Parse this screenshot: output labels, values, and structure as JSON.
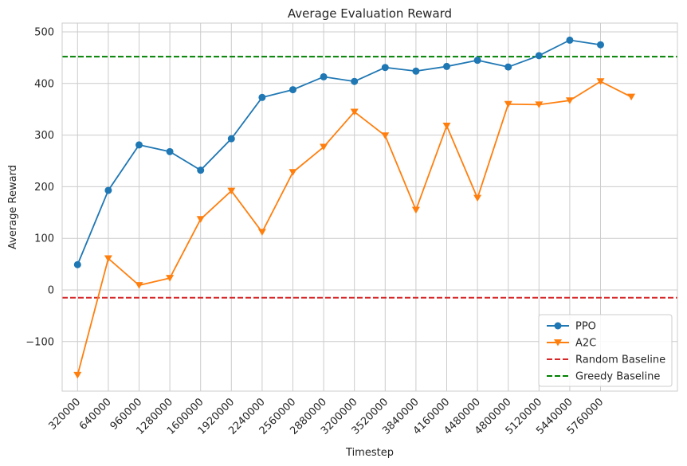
{
  "chart_data": {
    "type": "line",
    "title": "Average Evaluation Reward",
    "xlabel": "Timestep",
    "ylabel": "Average Reward",
    "x_ticks": [
      "320000",
      "640000",
      "960000",
      "1280000",
      "1600000",
      "1920000",
      "2240000",
      "2560000",
      "2880000",
      "3200000",
      "3520000",
      "3840000",
      "4160000",
      "4480000",
      "4800000",
      "5120000",
      "5440000",
      "5760000"
    ],
    "y_ticks": [
      -100,
      0,
      100,
      200,
      300,
      400,
      500
    ],
    "y_tick_labels": [
      "−100",
      "0",
      "100",
      "200",
      "300",
      "400",
      "500"
    ],
    "xlim": [
      160000,
      6560000
    ],
    "ylim": [
      -196,
      517
    ],
    "grid": true,
    "legend_position": "lower-right",
    "series": [
      {
        "name": "PPO",
        "color": "#1f77b4",
        "marker": "circle",
        "x": [
          320000,
          640000,
          960000,
          1280000,
          1600000,
          1920000,
          2240000,
          2560000,
          2880000,
          3200000,
          3520000,
          3840000,
          4160000,
          4480000,
          4800000,
          5120000,
          5440000,
          5760000
        ],
        "values": [
          49,
          193,
          281,
          268,
          232,
          293,
          373,
          388,
          413,
          404,
          431,
          424,
          433,
          445,
          432,
          454,
          484,
          475
        ]
      },
      {
        "name": "A2C",
        "color": "#ff7f0e",
        "marker": "triangle-down",
        "x": [
          320000,
          640000,
          960000,
          1280000,
          1600000,
          1920000,
          2240000,
          2560000,
          2880000,
          3200000,
          3520000,
          3840000,
          4160000,
          4480000,
          4800000,
          5120000,
          5440000,
          5760000,
          6080000
        ],
        "values": [
          -165,
          61,
          9,
          23,
          137,
          192,
          112,
          228,
          277,
          345,
          299,
          155,
          318,
          178,
          360,
          359,
          367,
          404,
          374
        ]
      }
    ],
    "baselines": [
      {
        "name": "Random Baseline",
        "value": -15,
        "color": "#d62728",
        "style": "dashed"
      },
      {
        "name": "Greedy Baseline",
        "value": 452,
        "color": "#008000",
        "style": "dashed"
      }
    ]
  }
}
